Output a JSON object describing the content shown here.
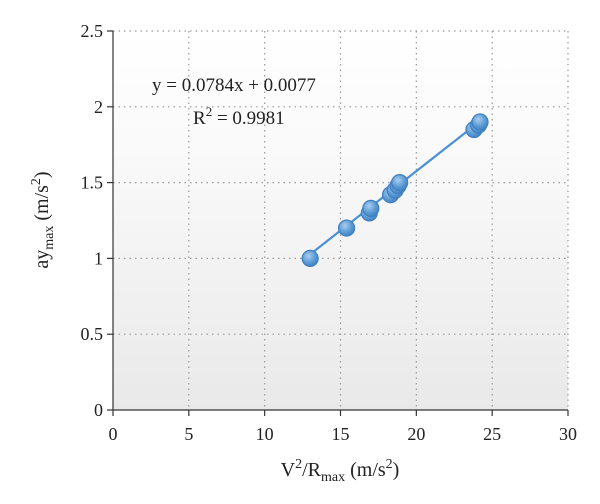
{
  "chart_data": {
    "type": "scatter",
    "title": "",
    "xlabel": "V²/R_max (m/s²)",
    "ylabel": "ay_max (m/s²)",
    "xlim": [
      0,
      30
    ],
    "ylim": [
      0,
      2.5
    ],
    "xticks": [
      "0",
      "5",
      "10",
      "15",
      "20",
      "25",
      "30"
    ],
    "yticks": [
      "0",
      "0.5",
      "1",
      "1.5",
      "2",
      "2.5"
    ],
    "grid": true,
    "points": [
      {
        "x": 13.0,
        "y": 1.0
      },
      {
        "x": 15.4,
        "y": 1.2
      },
      {
        "x": 16.9,
        "y": 1.3
      },
      {
        "x": 17.0,
        "y": 1.33
      },
      {
        "x": 18.3,
        "y": 1.42
      },
      {
        "x": 18.6,
        "y": 1.45
      },
      {
        "x": 18.8,
        "y": 1.48
      },
      {
        "x": 18.9,
        "y": 1.5
      },
      {
        "x": 23.8,
        "y": 1.85
      },
      {
        "x": 24.1,
        "y": 1.88
      },
      {
        "x": 24.2,
        "y": 1.9
      }
    ],
    "trendline": {
      "slope": 0.0784,
      "intercept": 0.0077,
      "x_range": [
        12.8,
        24.4
      ],
      "equation": "y = 0.0784x + 0.0077",
      "r2_label": "R",
      "r2_sup": "2",
      "r2_value": " = 0.9981"
    },
    "point_color": "#5b9bd5",
    "line_color": "#4a90d9",
    "xlabel_parts": {
      "v": "V",
      "sup": "2",
      "slash": "/R",
      "sub": "max",
      "unit": " (m/s",
      "unit_sup": "2",
      "close": ")"
    },
    "ylabel_parts": {
      "base": "ay",
      "sub": "max",
      "unit": " (m/s",
      "unit_sup": "2",
      "close": ")"
    }
  }
}
